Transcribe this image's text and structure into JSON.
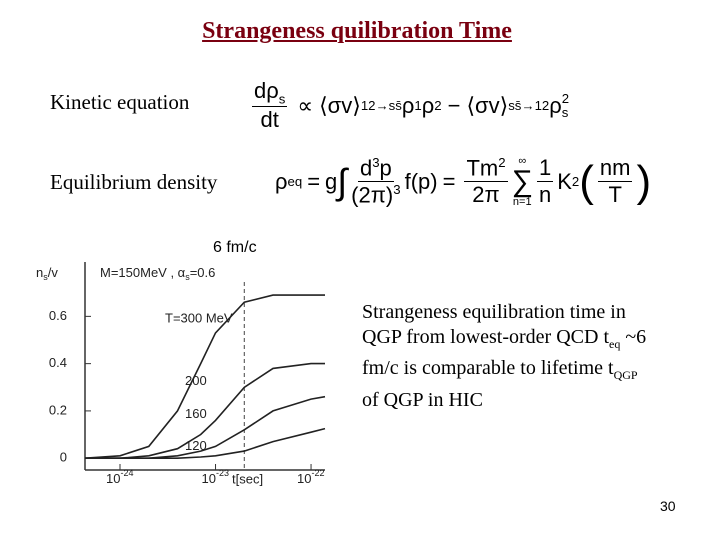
{
  "title": "Strangeness quilibration Time",
  "kinetic_label": "Kinetic equation",
  "kinetic_equation": [
    "dρ",
    "s",
    "dt",
    "∝",
    "⟨σv⟩",
    "12→ss̄",
    "ρ",
    "1",
    "ρ",
    "2",
    "−",
    "⟨σv⟩",
    "ss̄→12",
    "ρ",
    "s",
    "2"
  ],
  "equilibrium_label": "Equilibrium density",
  "equilibrium_equation": [
    "ρ",
    "eq",
    "=",
    "g",
    "∫",
    "d",
    "3",
    "p",
    "(2π)",
    "3",
    "f(p)",
    "=",
    "Tm",
    "2",
    "2π",
    "∑",
    "n=1",
    "∞",
    "1",
    "n",
    "K",
    "2",
    "(",
    "nm",
    "T",
    ")"
  ],
  "description": [
    "Strangeness equilibration time in QGP from lowest-order QCD t",
    "eq",
    " ~6 fm/c is comparable  to lifetime t",
    "QGP",
    " of QGP in HIC"
  ],
  "page_number": "30",
  "chart_data": {
    "type": "line",
    "y_label": [
      "n",
      "s",
      "/v"
    ],
    "parameters": "M=150MeV , α",
    "parameters_sub": "s",
    "parameters_end": "=0.6",
    "x_label": "t[sec]",
    "log_x": true,
    "x": [
      4.3e-25,
      1e-24,
      2e-24,
      4e-24,
      7e-24,
      1e-23,
      2e-23,
      4e-23,
      1e-22,
      1.4e-22
    ],
    "series": [
      {
        "name": "T=300 MeV",
        "color": "#222",
        "values": [
          0,
          0.01,
          0.05,
          0.2,
          0.4,
          0.53,
          0.66,
          0.69,
          0.69,
          0.69
        ]
      },
      {
        "name": "200",
        "color": "#222",
        "values": [
          0,
          0,
          0.01,
          0.04,
          0.1,
          0.16,
          0.3,
          0.38,
          0.4,
          0.4
        ]
      },
      {
        "name": "160",
        "color": "#222",
        "values": [
          0,
          0,
          0,
          0.01,
          0.03,
          0.05,
          0.12,
          0.2,
          0.25,
          0.26
        ]
      },
      {
        "name": "120",
        "color": "#222",
        "values": [
          0,
          0,
          0,
          0,
          0.005,
          0.01,
          0.03,
          0.07,
          0.11,
          0.125
        ]
      }
    ],
    "xlim": [
      4.3e-25,
      1.4e-22
    ],
    "ylim": [
      -0.05,
      0.83
    ],
    "xticks": [
      {
        "value": 1e-24,
        "label": "10",
        "power": "-24"
      },
      {
        "value": 1e-23,
        "label": "10",
        "power": "-23"
      },
      {
        "value": 1e-22,
        "label": "10",
        "power": "-22"
      }
    ],
    "yticks": [
      0,
      0.2,
      0.4,
      0.6
    ],
    "marker_x": 2e-23,
    "marker_label": "6 fm/c"
  }
}
